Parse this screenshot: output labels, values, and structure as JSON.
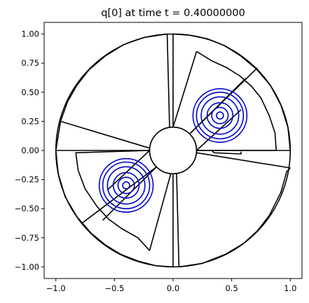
{
  "chart_data": {
    "type": "contour",
    "title": "q[0] at time t =     0.40000000",
    "xlabel": "",
    "ylabel": "",
    "xlim": [
      -1.1,
      1.1
    ],
    "ylim": [
      -1.1,
      1.1
    ],
    "xticks": [
      -1.0,
      -0.5,
      0.0,
      0.5,
      1.0
    ],
    "xtick_labels": [
      "−1.0",
      "−0.5",
      "0.0",
      "0.5",
      "1.0"
    ],
    "yticks": [
      1.0,
      0.75,
      0.5,
      0.25,
      0.0,
      -0.25,
      -0.5,
      -0.75,
      -1.0
    ],
    "ytick_labels": [
      "1.00",
      "0.75",
      "0.50",
      "0.25",
      "0.00",
      "−0.25",
      "−0.50",
      "−0.75",
      "−1.00"
    ],
    "grid": false,
    "colors": {
      "grid_lines": "#000000",
      "contours": "#0000cc"
    },
    "annulus": {
      "inner_radius": 0.2,
      "outer_radius": 1.0
    },
    "grid_outline_polylines": [
      [
        [
          -0.2,
          0.0
        ],
        [
          -1.0,
          0.0
        ]
      ],
      [
        [
          -1.0,
          0.0
        ],
        [
          -0.98,
          -0.2
        ],
        [
          -0.92,
          -0.4
        ],
        [
          -0.82,
          -0.57
        ],
        [
          -0.7,
          -0.71
        ],
        [
          -0.58,
          -0.81
        ],
        [
          -0.45,
          -0.89
        ],
        [
          -0.3,
          -0.95
        ],
        [
          -0.15,
          -0.99
        ],
        [
          0.0,
          -1.0
        ]
      ],
      [
        [
          -0.2,
          0.0
        ],
        [
          -0.83,
          -0.02
        ],
        [
          -0.81,
          -0.17
        ],
        [
          -0.75,
          -0.33
        ],
        [
          -0.65,
          -0.48
        ],
        [
          -0.55,
          -0.59
        ],
        [
          -0.44,
          -0.67
        ],
        [
          -0.3,
          -0.75
        ],
        [
          -0.2,
          -0.86
        ]
      ],
      [
        [
          -0.14,
          -0.14
        ],
        [
          -0.77,
          -0.62
        ]
      ],
      [
        [
          -0.14,
          -0.14
        ],
        [
          -0.6,
          -0.6
        ]
      ],
      [
        [
          -0.2,
          0.0
        ],
        [
          -0.56,
          -0.34
        ]
      ],
      [
        [
          -0.02,
          -0.2
        ],
        [
          -0.2,
          -0.86
        ]
      ],
      [
        [
          0.0,
          -0.2
        ],
        [
          0.0,
          -1.0
        ]
      ],
      [
        [
          0.03,
          -0.2
        ],
        [
          0.05,
          -1.0
        ]
      ],
      [
        [
          0.05,
          -1.0
        ],
        [
          0.25,
          -0.97
        ],
        [
          0.45,
          -0.89
        ],
        [
          0.6,
          -0.8
        ],
        [
          0.72,
          -0.69
        ],
        [
          0.82,
          -0.56
        ],
        [
          0.92,
          -0.36
        ],
        [
          0.97,
          -0.18
        ],
        [
          1.0,
          -0.15
        ]
      ],
      [
        [
          0.2,
          -0.02
        ],
        [
          1.0,
          -0.15
        ]
      ],
      [
        [
          0.2,
          0.0
        ],
        [
          1.0,
          0.0
        ]
      ],
      [
        [
          1.0,
          0.0
        ],
        [
          0.98,
          0.2
        ],
        [
          0.92,
          0.39
        ],
        [
          0.83,
          0.56
        ],
        [
          0.71,
          0.7
        ],
        [
          0.58,
          0.81
        ],
        [
          0.44,
          0.9
        ],
        [
          0.29,
          0.96
        ],
        [
          0.14,
          0.99
        ],
        [
          0.0,
          1.0
        ]
      ],
      [
        [
          0.2,
          0.0
        ],
        [
          0.88,
          0.0
        ],
        [
          0.87,
          0.15
        ],
        [
          0.82,
          0.3
        ],
        [
          0.75,
          0.45
        ],
        [
          0.67,
          0.55
        ],
        [
          0.57,
          0.64
        ],
        [
          0.46,
          0.71
        ],
        [
          0.33,
          0.77
        ],
        [
          0.2,
          0.85
        ]
      ],
      [
        [
          0.14,
          0.14
        ],
        [
          0.72,
          0.71
        ]
      ],
      [
        [
          0.14,
          0.14
        ],
        [
          0.62,
          0.62
        ]
      ],
      [
        [
          0.2,
          0.0
        ],
        [
          0.58,
          0.35
        ]
      ],
      [
        [
          0.0,
          0.2
        ],
        [
          0.2,
          0.85
        ]
      ],
      [
        [
          0.0,
          0.2
        ],
        [
          0.0,
          1.0
        ]
      ],
      [
        [
          -0.03,
          0.2
        ],
        [
          -0.05,
          1.0
        ]
      ],
      [
        [
          -0.05,
          1.0
        ],
        [
          -0.25,
          0.97
        ],
        [
          -0.42,
          0.91
        ],
        [
          -0.58,
          0.81
        ],
        [
          -0.72,
          0.69
        ],
        [
          -0.82,
          0.56
        ],
        [
          -0.9,
          0.42
        ],
        [
          -0.96,
          0.25
        ],
        [
          -1.0,
          0.0
        ]
      ],
      [
        [
          -0.2,
          0.02
        ],
        [
          -0.96,
          0.25
        ]
      ],
      [
        [
          0.33,
          0.0
        ],
        [
          0.35,
          -0.02
        ],
        [
          0.58,
          -0.03
        ],
        [
          0.58,
          -0.01
        ]
      ],
      [
        [
          0.0,
          -0.03
        ],
        [
          0.0,
          0.0
        ]
      ]
    ],
    "contour_centers": [
      [
        0.4,
        0.3
      ],
      [
        -0.4,
        -0.3
      ]
    ],
    "contour_radii": [
      0.03,
      0.07,
      0.11,
      0.16,
      0.2,
      0.23
    ]
  }
}
